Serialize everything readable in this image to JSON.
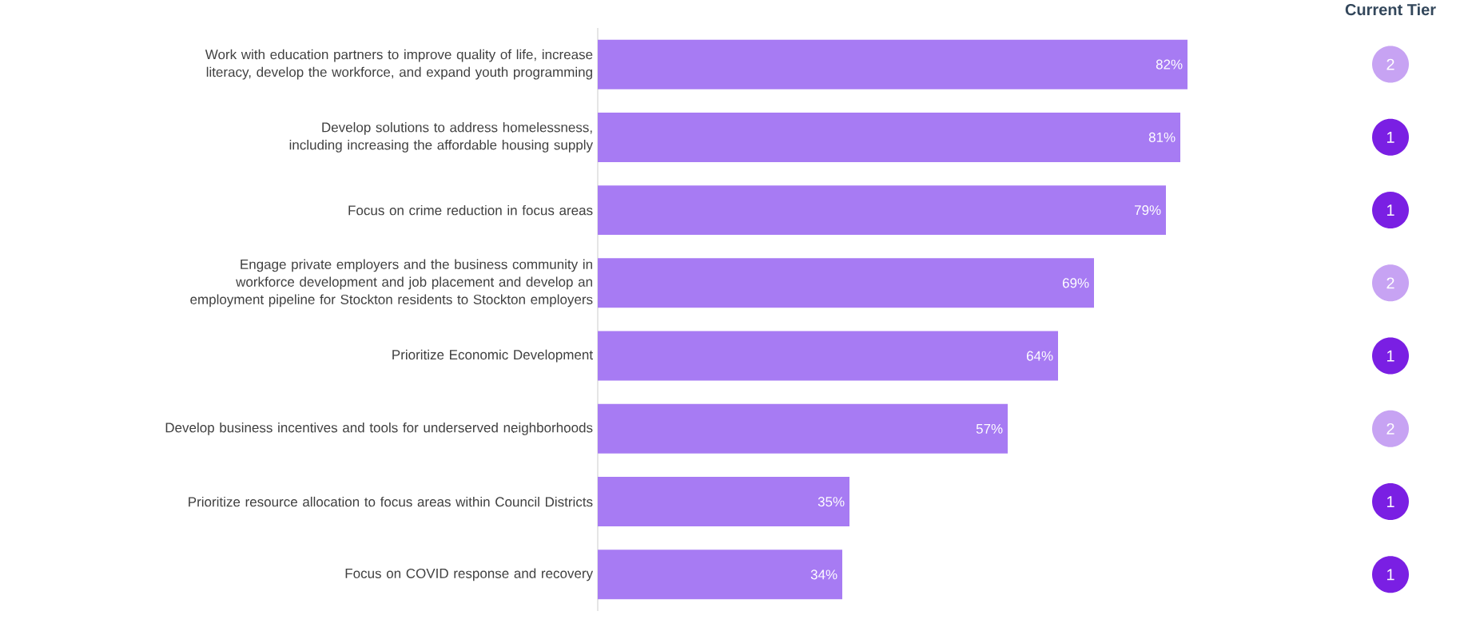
{
  "chart_data": [
    {
      "type": "bar",
      "orientation": "horizontal",
      "categories": [
        "Work with education partners to improve quality of life, increase literacy, develop the workforce, and expand youth programming",
        "Develop solutions to address homelessness, including increasing the affordable housing supply",
        "Focus on crime reduction in focus areas",
        "Engage private employers and the business community in workforce development and job placement and develop an employment pipeline for Stockton residents to Stockton employers",
        "Prioritize Economic Development",
        "Develop business incentives and tools for underserved neighborhoods",
        "Prioritize resource allocation to focus areas within Council Districts",
        "Focus on COVID response and recovery"
      ],
      "values": [
        82,
        81,
        79,
        69,
        64,
        57,
        35,
        34
      ],
      "value_labels": [
        "82%",
        "81%",
        "79%",
        "69%",
        "64%",
        "57%",
        "35%",
        "34%"
      ],
      "color": "#a77bf3",
      "tick_labels": "y"
    },
    {
      "type": "other",
      "title": "Current Tier",
      "categories": [
        null,
        null,
        null,
        null,
        null,
        null,
        null,
        null
      ],
      "values": [
        2,
        1,
        1,
        2,
        1,
        2,
        1,
        1
      ],
      "colors": [
        "#c7a3f3",
        "#7a1fe3",
        "#7a1fe3",
        "#c7a3f3",
        "#7a1fe3",
        "#c7a3f3",
        "#7a1fe3",
        "#7a1fe3"
      ],
      "data_labels": true
    }
  ]
}
